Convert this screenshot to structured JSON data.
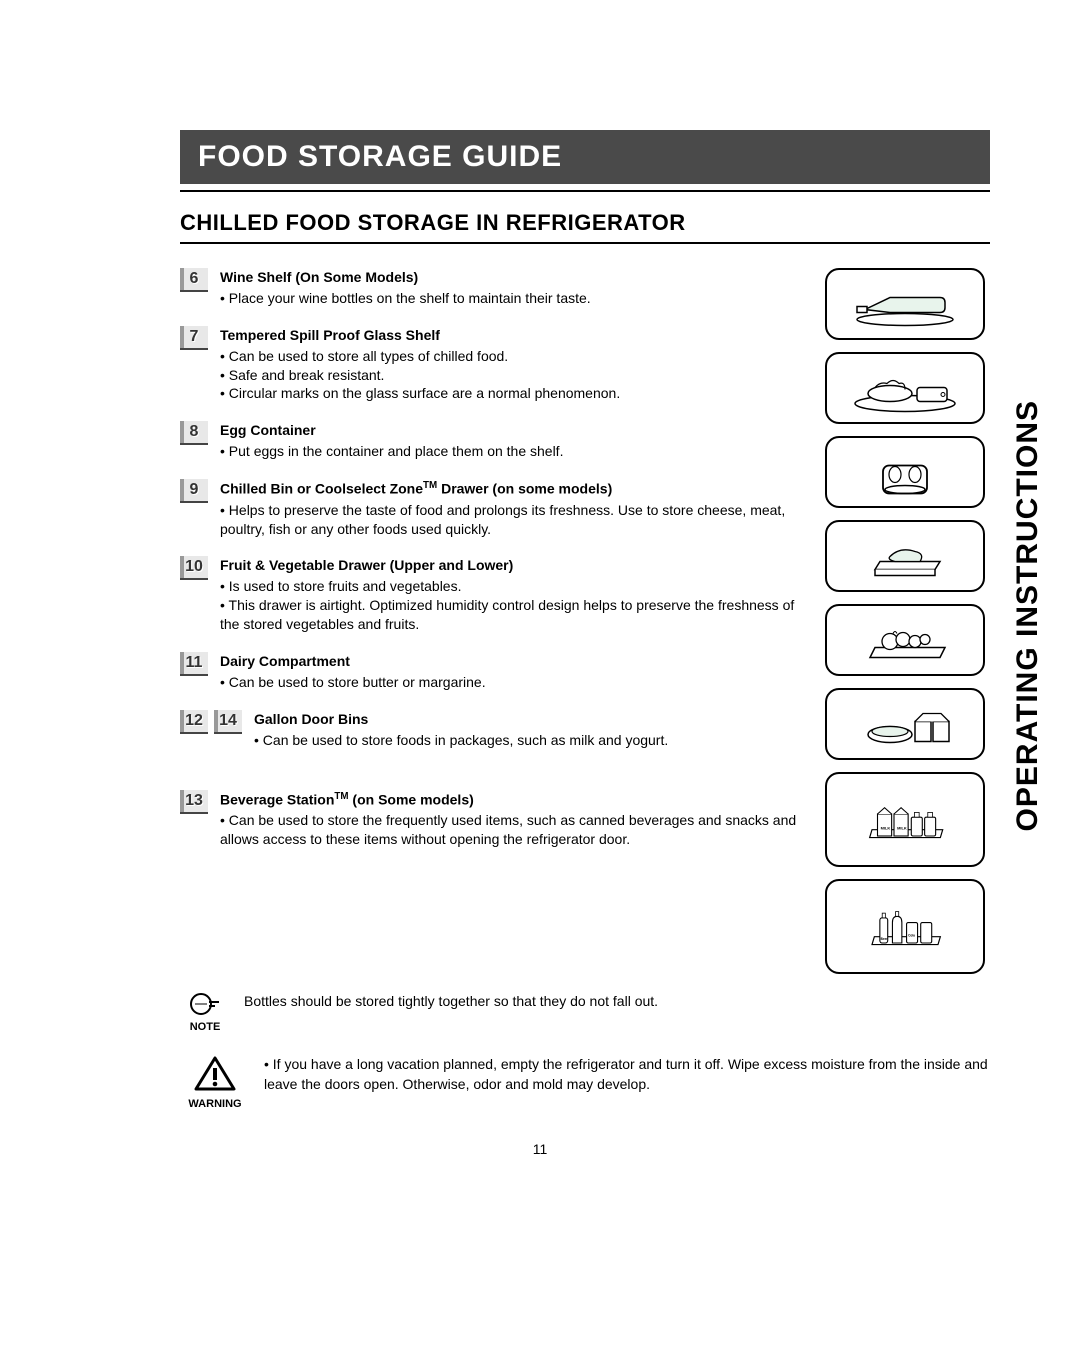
{
  "page": {
    "title": "FOOD STORAGE GUIDE",
    "subtitle": "CHILLED FOOD STORAGE IN REFRIGERATOR",
    "side_label": "OPERATING INSTRUCTIONS",
    "page_number": "11"
  },
  "items": [
    {
      "numbers": [
        "6"
      ],
      "title": "Wine Shelf (On Some Models)",
      "bullets": [
        "Place your wine bottles on the shelf to maintain their taste."
      ]
    },
    {
      "numbers": [
        "7"
      ],
      "title": "Tempered Spill Proof Glass Shelf",
      "bullets": [
        "Can be used to store all types of chilled food.",
        "Safe and break resistant.",
        "Circular marks on the glass surface are a normal phenomenon."
      ]
    },
    {
      "numbers": [
        "8"
      ],
      "title": "Egg Container",
      "bullets": [
        "Put eggs in the container and place them on the shelf."
      ]
    },
    {
      "numbers": [
        "9"
      ],
      "title": "Chilled Bin or Coolselect Zone™ Drawer (on some models)",
      "bullets": [
        "Helps to preserve the taste of food and prolongs its freshness. Use to store cheese, meat, poultry, fish or any other foods used quickly."
      ]
    },
    {
      "numbers": [
        "10"
      ],
      "title": "Fruit & Vegetable Drawer (Upper and Lower)",
      "bullets": [
        "Is used to store fruits and vegetables.",
        "This drawer is airtight. Optimized humidity control design helps to preserve the freshness of the stored vegetables and fruits."
      ]
    },
    {
      "numbers": [
        "11"
      ],
      "title": "Dairy Compartment",
      "bullets": [
        "Can be used to store butter or margarine."
      ]
    },
    {
      "numbers": [
        "12",
        "14"
      ],
      "title": "Gallon Door Bins",
      "bullets": [
        "Can be used to store foods in packages, such as milk and yogurt."
      ]
    },
    {
      "numbers": [
        "13"
      ],
      "title": "Beverage Station™ (on  Some models)",
      "bullets": [
        "Can be used to store the frequently used items, such as canned beverages and snacks and allows access to these items without opening the refrigerator door."
      ]
    }
  ],
  "note": {
    "label": "NOTE",
    "text": "Bottles should be stored tightly together so that they do not fall out."
  },
  "warning": {
    "label": "WARNING",
    "text": "If you have a long vacation planned, empty the refrigerator and turn it off. Wipe excess moisture from the inside and leave the doors open. Otherwise, odor and mold may develop."
  },
  "colors": {
    "title_bg": "#4a4a4a",
    "title_text": "#ffffff",
    "body_text": "#000000",
    "badge_border": "#444444",
    "badge_bg_light": "#e8e8e8",
    "badge_bg_dark": "#999999"
  },
  "typography": {
    "title_fontsize_pt": 22,
    "subtitle_fontsize_pt": 16,
    "body_fontsize_pt": 10,
    "side_label_fontsize_pt": 22,
    "font_family": "Arial"
  }
}
